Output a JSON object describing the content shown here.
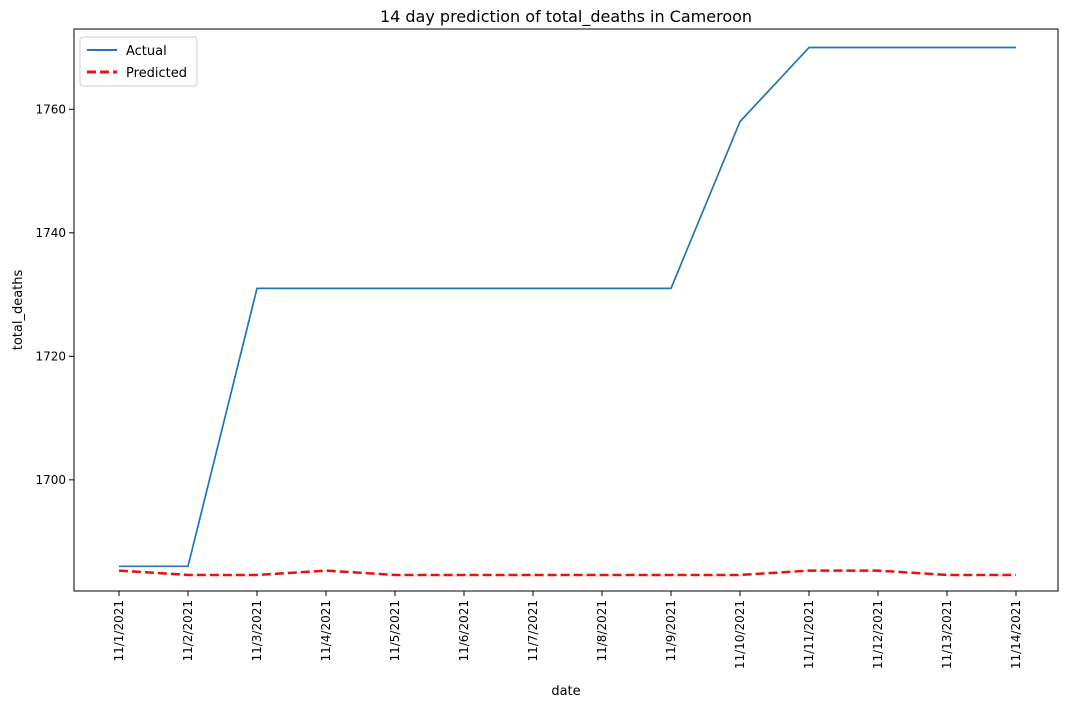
{
  "chart_data": {
    "type": "line",
    "title": "14 day prediction of total_deaths in Cameroon",
    "xlabel": "date",
    "ylabel": "total_deaths",
    "x": [
      "11/1/2021",
      "11/2/2021",
      "11/3/2021",
      "11/4/2021",
      "11/5/2021",
      "11/6/2021",
      "11/7/2021",
      "11/8/2021",
      "11/9/2021",
      "11/10/2021",
      "11/11/2021",
      "11/12/2021",
      "11/13/2021",
      "11/14/2021"
    ],
    "yticks": [
      1700,
      1720,
      1740,
      1760
    ],
    "ylim": [
      1682,
      1773
    ],
    "grid": false,
    "legend_position": "top-left",
    "series": [
      {
        "name": "Actual",
        "color": "#1f77b4",
        "style": "solid",
        "values": [
          1686,
          1686,
          1731,
          1731,
          1731,
          1731,
          1731,
          1731,
          1731,
          1758,
          1770,
          1770,
          1770,
          1770
        ]
      },
      {
        "name": "Predicted",
        "color": "#e8120c",
        "style": "dashed",
        "values": [
          1685.3,
          1684.6,
          1684.6,
          1685.3,
          1684.6,
          1684.6,
          1684.6,
          1684.6,
          1684.6,
          1684.6,
          1685.3,
          1685.3,
          1684.6,
          1684.6
        ]
      }
    ]
  }
}
